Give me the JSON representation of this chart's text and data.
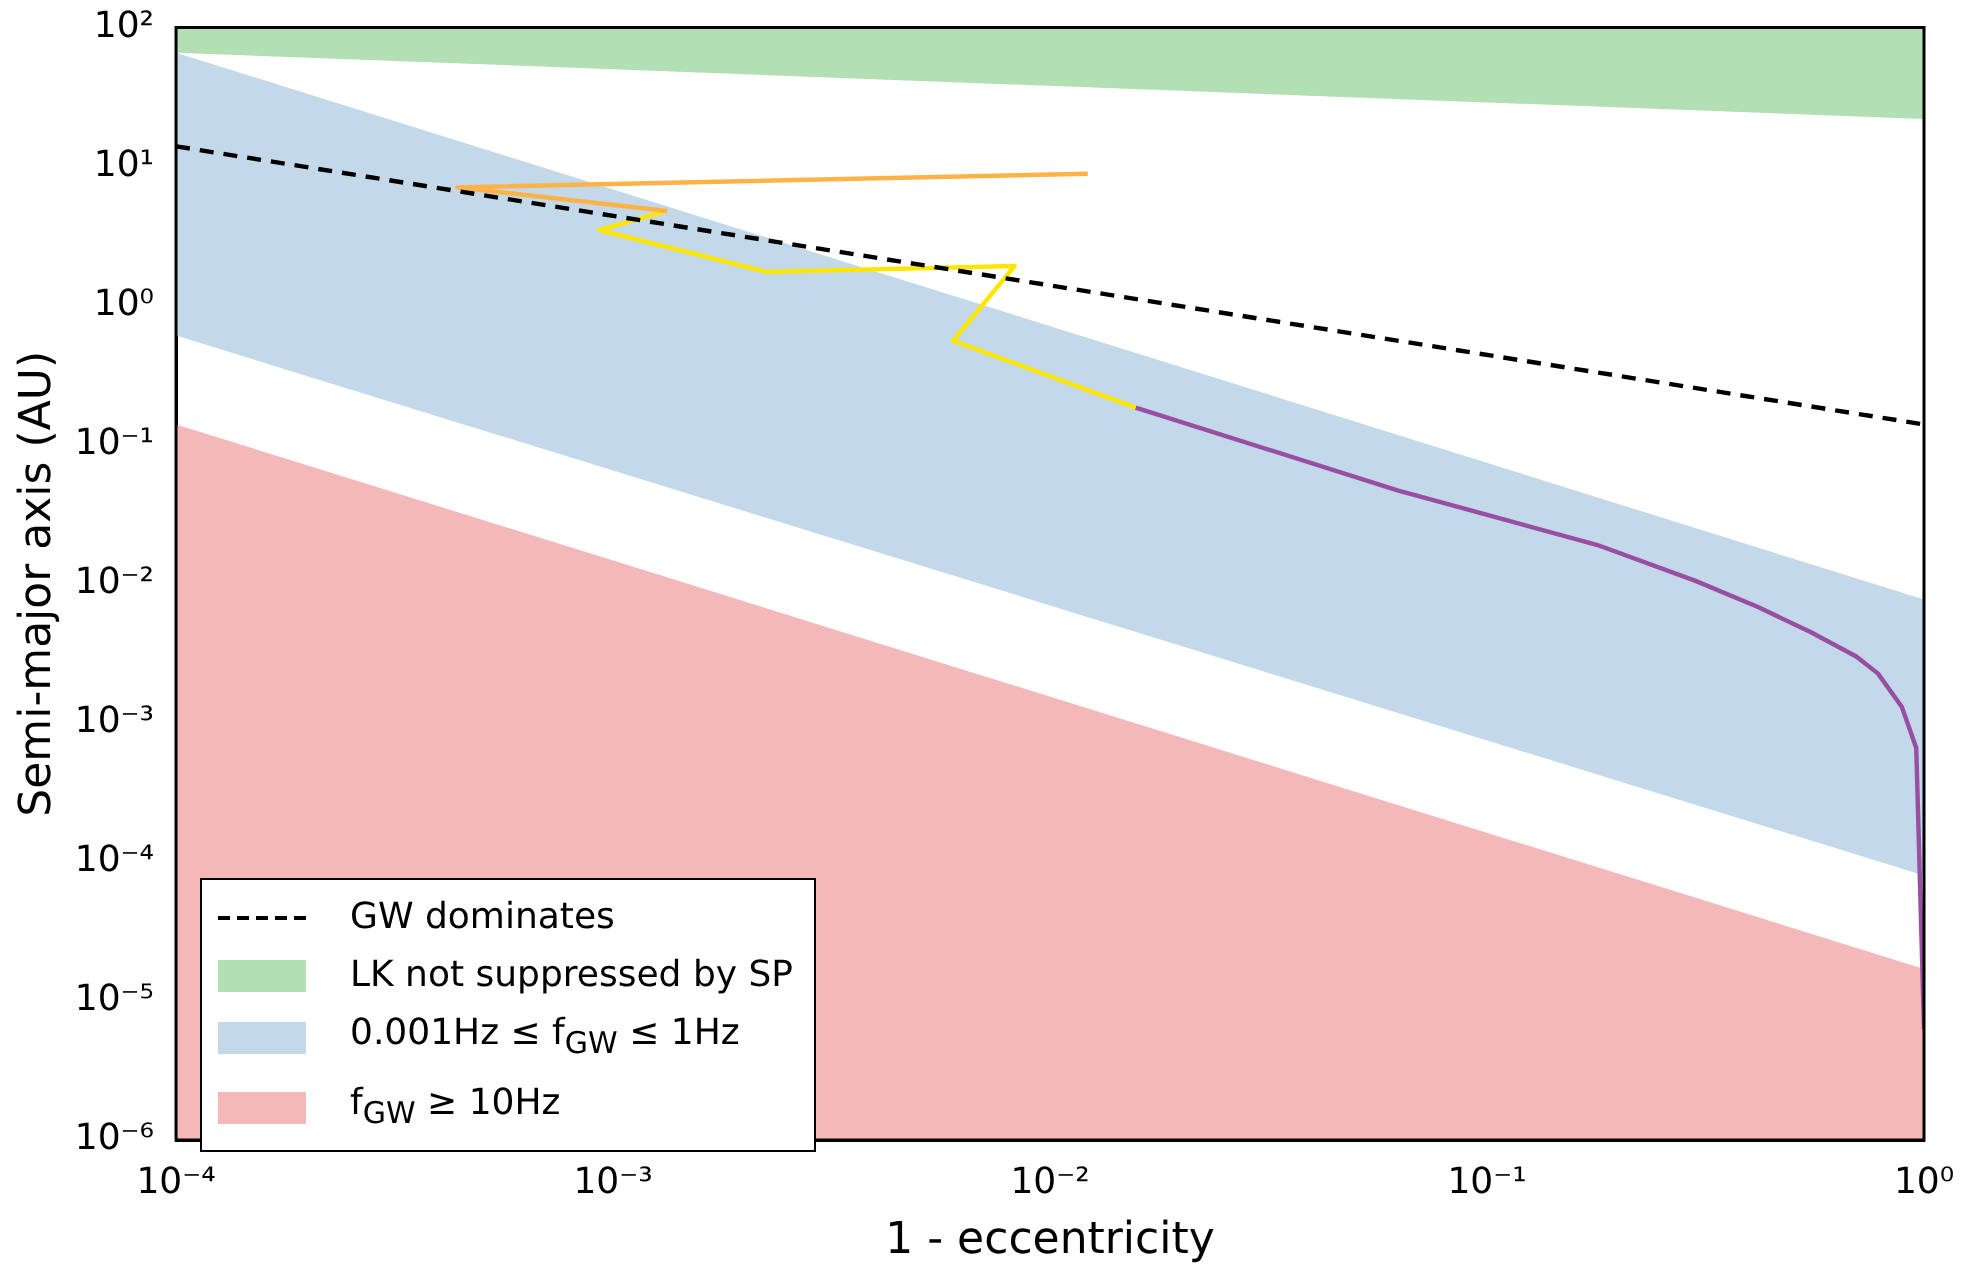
{
  "chart_data": {
    "type": "line",
    "xlabel": "1 - eccentricity",
    "ylabel": "Semi-major axis (AU)",
    "log": "xy",
    "xlim": [
      0.0001,
      1
    ],
    "ylim": [
      1e-06,
      100
    ],
    "xticks": [
      {
        "value": 0.0001,
        "label": "10⁻⁴"
      },
      {
        "value": 0.001,
        "label": "10⁻³"
      },
      {
        "value": 0.01,
        "label": "10⁻²"
      },
      {
        "value": 0.1,
        "label": "10⁻¹"
      },
      {
        "value": 1,
        "label": "10⁰"
      }
    ],
    "yticks": [
      {
        "value": 1e-06,
        "label": "10⁻⁶"
      },
      {
        "value": 1e-05,
        "label": "10⁻⁵"
      },
      {
        "value": 0.0001,
        "label": "10⁻⁴"
      },
      {
        "value": 0.001,
        "label": "10⁻³"
      },
      {
        "value": 0.01,
        "label": "10⁻²"
      },
      {
        "value": 0.1,
        "label": "10⁻¹"
      },
      {
        "value": 1,
        "label": "10⁰"
      },
      {
        "value": 10,
        "label": "10¹"
      },
      {
        "value": 100,
        "label": "10²"
      }
    ],
    "grid": false,
    "legend": "bottom left",
    "series": [
      {
        "name": "GW dominates",
        "line_style": "dashed",
        "color": "#000000",
        "x": [
          0.0001,
          1
        ],
        "values": [
          14,
          0.14
        ]
      },
      {
        "name": "LK not suppressed by SP",
        "type": "area",
        "color": "#b3dfb4",
        "x": [
          0.0001,
          1
        ],
        "values": [
          null,
          null
        ],
        "upper": [
          100,
          100
        ],
        "lower": [
          66,
          22
        ]
      },
      {
        "name": "0.001Hz ≤ f$_{GW}$ ≤ 1Hz",
        "type": "area",
        "color": "#c3d8e8",
        "x": [
          0.0001,
          1
        ],
        "values": [
          null,
          null
        ],
        "upper": [
          66,
          0.0077
        ],
        "lower": [
          0.61,
          8e-05
        ]
      },
      {
        "name": "f$_{GW}$ ≥ 10Hz",
        "type": "area",
        "color": "#f5b8b8",
        "x": [
          0.0001,
          1
        ],
        "values": [
          null,
          null
        ],
        "upper": [
          0.14,
          1.7e-05
        ],
        "lower": [
          1e-06,
          1e-06
        ]
      },
      {
        "color": "#ffb347",
        "x": [
          0.0122,
          0.00044,
          0.00133
        ],
        "values": [
          8.9,
          7.1,
          4.8
        ]
      },
      {
        "color": "#ffe600",
        "x": [
          0.00133,
          0.00093,
          0.00225,
          0.0083,
          0.006,
          0.0157
        ],
        "values": [
          4.8,
          3.5,
          1.75,
          1.93,
          0.56,
          0.185
        ]
      },
      {
        "color": "#984ea3",
        "x": [
          0.0157,
          0.0624,
          0.179,
          0.3,
          0.417,
          0.55,
          0.7,
          0.785,
          0.89,
          0.96,
          1
        ],
        "values": [
          0.185,
          0.047,
          0.019,
          0.0105,
          0.0068,
          0.0045,
          0.003,
          0.00226,
          0.0013,
          0.00066,
          6.3e-06
        ]
      }
    ]
  }
}
